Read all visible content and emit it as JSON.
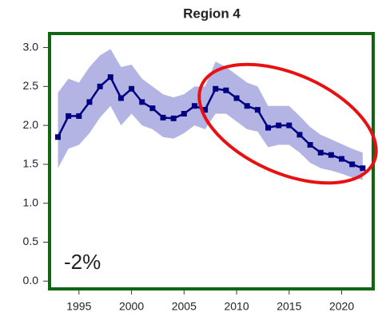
{
  "chart_data": {
    "type": "line",
    "title": "Region 4",
    "annotation": "-2%",
    "x": [
      1993,
      1994,
      1995,
      1996,
      1997,
      1998,
      1999,
      2000,
      2001,
      2002,
      2003,
      2004,
      2005,
      2006,
      2007,
      2008,
      2009,
      2010,
      2011,
      2012,
      2013,
      2014,
      2015,
      2016,
      2017,
      2018,
      2019,
      2020,
      2021,
      2022
    ],
    "series": [
      {
        "color": "#000080",
        "values": [
          1.85,
          2.12,
          2.12,
          2.3,
          2.5,
          2.62,
          2.35,
          2.47,
          2.3,
          2.22,
          2.1,
          2.09,
          2.15,
          2.25,
          2.2,
          2.47,
          2.45,
          2.35,
          2.25,
          2.2,
          1.97,
          2.0,
          2.0,
          1.88,
          1.75,
          1.65,
          1.62,
          1.57,
          1.5,
          1.45
        ]
      }
    ],
    "band_color": "#b4b4e4",
    "band_upper": [
      2.42,
      2.6,
      2.55,
      2.75,
      2.9,
      2.98,
      2.75,
      2.78,
      2.6,
      2.5,
      2.4,
      2.36,
      2.4,
      2.5,
      2.5,
      2.82,
      2.75,
      2.65,
      2.55,
      2.5,
      2.25,
      2.25,
      2.25,
      2.12,
      1.98,
      1.88,
      1.82,
      1.76,
      1.7,
      1.65
    ],
    "band_lower": [
      1.45,
      1.7,
      1.75,
      1.9,
      2.1,
      2.25,
      2.0,
      2.15,
      2.0,
      1.95,
      1.85,
      1.83,
      1.9,
      2.0,
      1.95,
      2.15,
      2.15,
      2.05,
      1.95,
      1.92,
      1.72,
      1.75,
      1.75,
      1.65,
      1.52,
      1.45,
      1.42,
      1.38,
      1.33,
      1.3
    ],
    "xlim": [
      1992.2,
      2023
    ],
    "xticks": [
      1995,
      2000,
      2005,
      2010,
      2015,
      2020
    ],
    "ylim": [
      -0.1,
      3.18
    ],
    "yticks": [
      {
        "value": 0,
        "label": "0.0"
      },
      {
        "value": 0.5,
        "label": "0.5"
      },
      {
        "value": 1,
        "label": "1.0"
      },
      {
        "value": 1.5,
        "label": "1.5"
      },
      {
        "value": 2,
        "label": "2.0"
      },
      {
        "value": 2.5,
        "label": "2.5"
      },
      {
        "value": 3,
        "label": "3.0"
      }
    ]
  }
}
